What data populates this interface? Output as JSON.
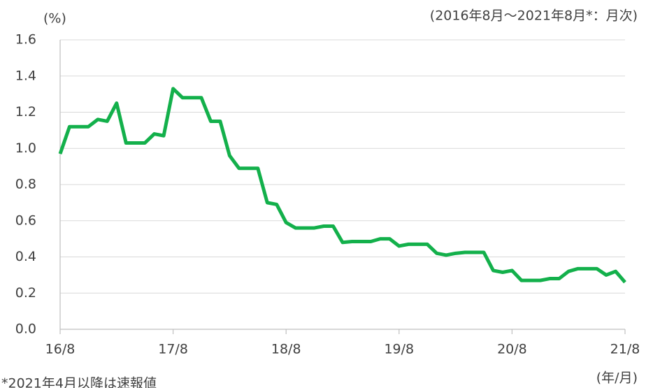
{
  "chart_data": {
    "type": "line",
    "y_unit": "(%)",
    "subtitle": "(2016年8月～2021年8月*：月次)",
    "x_label": "(年/月)",
    "note": "*2021年4月以降は速報値",
    "categories": [
      "16/8",
      null,
      null,
      null,
      null,
      null,
      null,
      null,
      null,
      null,
      null,
      null,
      "17/8",
      null,
      null,
      null,
      null,
      null,
      null,
      null,
      null,
      null,
      null,
      null,
      "18/8",
      null,
      null,
      null,
      null,
      null,
      null,
      null,
      null,
      null,
      null,
      null,
      "19/8",
      null,
      null,
      null,
      null,
      null,
      null,
      null,
      null,
      null,
      null,
      null,
      "20/8",
      null,
      null,
      null,
      null,
      null,
      null,
      null,
      null,
      null,
      null,
      null,
      "21/8"
    ],
    "series": [
      {
        "color": "#13b04b",
        "values": [
          0.97,
          1.12,
          1.12,
          1.12,
          1.16,
          1.15,
          1.25,
          1.03,
          1.03,
          1.03,
          1.08,
          1.07,
          1.33,
          1.28,
          1.28,
          1.28,
          1.15,
          1.15,
          0.96,
          0.89,
          0.89,
          0.89,
          0.7,
          0.69,
          0.59,
          0.56,
          0.56,
          0.56,
          0.57,
          0.57,
          0.48,
          0.485,
          0.485,
          0.485,
          0.5,
          0.5,
          0.46,
          0.47,
          0.47,
          0.47,
          0.42,
          0.41,
          0.42,
          0.425,
          0.425,
          0.425,
          0.325,
          0.315,
          0.325,
          0.27,
          0.27,
          0.27,
          0.28,
          0.28,
          0.32,
          0.335,
          0.335,
          0.335,
          0.3,
          0.32,
          0.26
        ]
      }
    ],
    "ylim": [
      0,
      1.6
    ],
    "yticks": [
      {
        "value": 0,
        "label": "0.0"
      },
      0.2,
      0.4,
      0.6,
      0.8,
      {
        "value": 1,
        "label": "1.0"
      },
      1.2,
      1.4,
      1.6
    ],
    "grid": true
  }
}
